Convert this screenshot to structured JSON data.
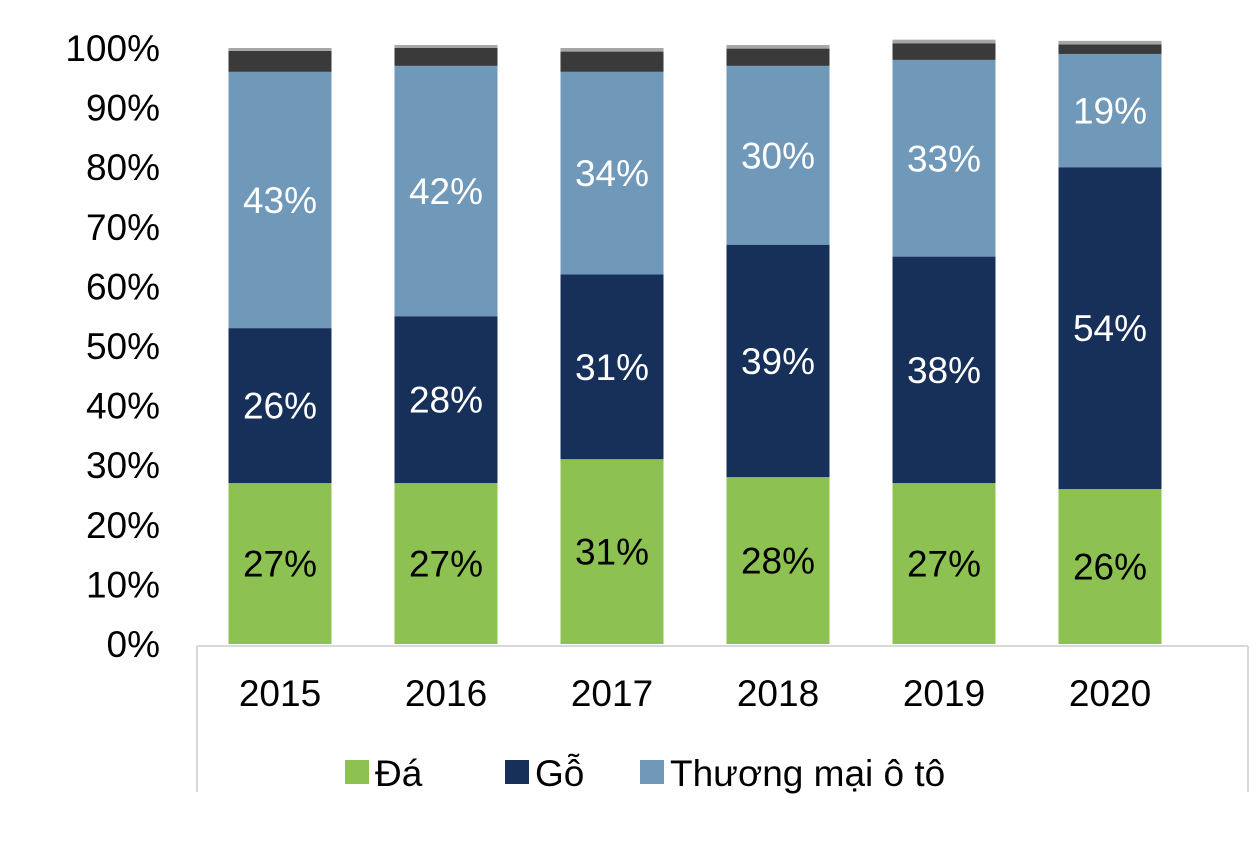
{
  "chart_data": {
    "type": "bar",
    "stacked": true,
    "normalized": true,
    "categories": [
      "2015",
      "2016",
      "2017",
      "2018",
      "2019",
      "2020"
    ],
    "series": [
      {
        "name": "Đá",
        "color": "#8DC152",
        "label_color": "#000000",
        "values": [
          27,
          27,
          31,
          28,
          27,
          26
        ],
        "labels": [
          "27%",
          "27%",
          "31%",
          "28%",
          "27%",
          "26%"
        ],
        "in_legend": true
      },
      {
        "name": "Gỗ",
        "color": "#17305A",
        "label_color": "#ffffff",
        "values": [
          26,
          28,
          31,
          39,
          38,
          54
        ],
        "labels": [
          "26%",
          "28%",
          "31%",
          "39%",
          "38%",
          "54%"
        ],
        "in_legend": true
      },
      {
        "name": "Thương mại ô tô",
        "color": "#7098B9",
        "label_color": "#ffffff",
        "values": [
          43,
          42,
          34,
          30,
          33,
          19
        ],
        "labels": [
          "43%",
          "42%",
          "34%",
          "30%",
          "33%",
          "19%"
        ],
        "in_legend": true
      },
      {
        "name": "Other (unlabeled)",
        "color": "#3A3A3A",
        "values": [
          3.5,
          3,
          3.4,
          2.9,
          2.8,
          1.6
        ],
        "in_legend": false
      },
      {
        "name": "Other 2 (unlabeled)",
        "color": "#A6A6A6",
        "values": [
          0.5,
          0.5,
          0.6,
          0.6,
          0.6,
          0.6
        ],
        "in_legend": false
      }
    ],
    "ylim": [
      0,
      100
    ],
    "yticks": [
      "0%",
      "10%",
      "20%",
      "30%",
      "40%",
      "50%",
      "60%",
      "70%",
      "80%",
      "90%",
      "100%"
    ],
    "legend_position": "bottom",
    "grid": false
  }
}
